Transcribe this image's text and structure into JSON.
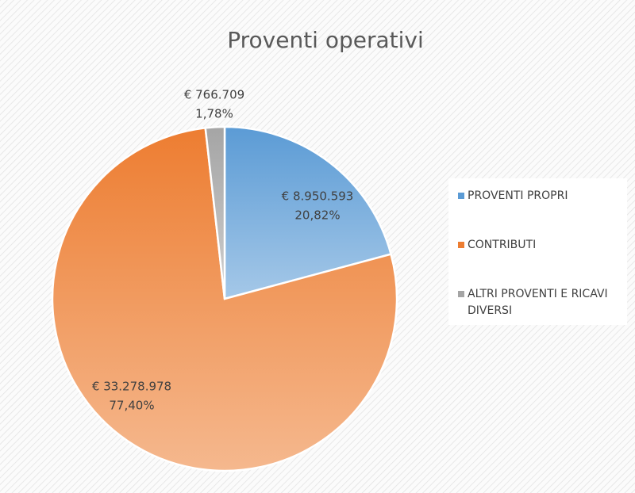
{
  "chart_data": {
    "type": "pie",
    "title": "Proventi operativi",
    "categories": [
      "PROVENTI PROPRI",
      "CONTRIBUTI",
      "ALTRI PROVENTI E RICAVI DIVERSI"
    ],
    "values": [
      8950593,
      33278978,
      766709
    ],
    "value_labels": [
      "€ 8.950.593",
      "€ 33.278.978",
      "€ 766.709"
    ],
    "percent_labels": [
      "20,82%",
      "77,40%",
      "1,78%"
    ],
    "colors": [
      "#5b9bd5",
      "#ed7d31",
      "#a5a5a5"
    ],
    "legend": "right"
  }
}
